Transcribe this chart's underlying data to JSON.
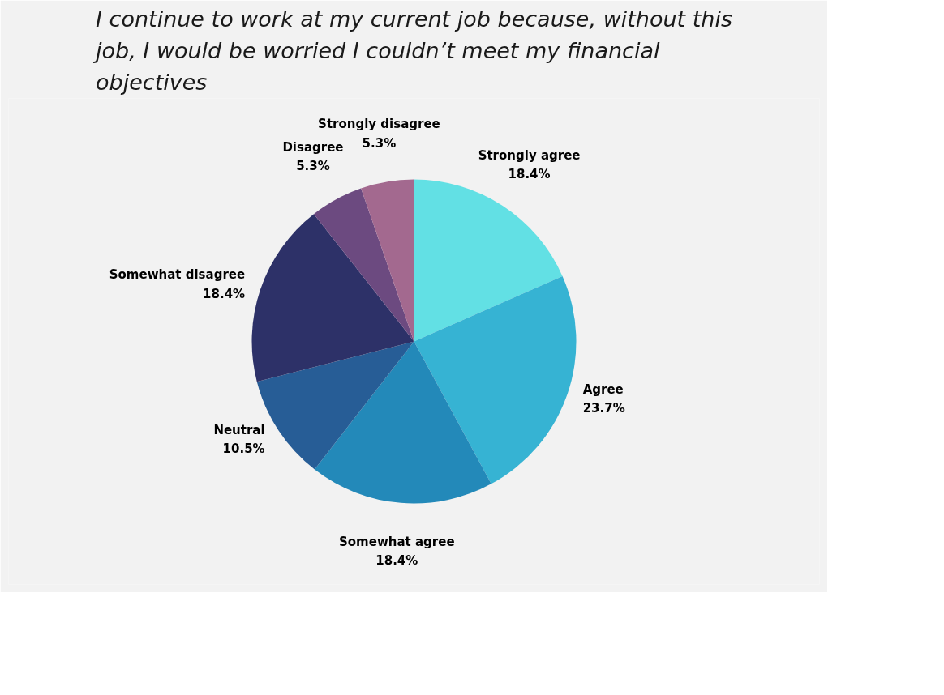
{
  "chart_data": {
    "type": "pie",
    "title": "I continue to work at my current job because, without this job, I would be worried I couldn’t meet my financial objectives",
    "categories": [
      "Strongly agree",
      "Agree",
      "Somewhat agree",
      "Neutral",
      "Somewhat disagree",
      "Disagree",
      "Strongly disagree"
    ],
    "values": [
      18.4,
      23.7,
      18.4,
      10.5,
      18.4,
      5.3,
      5.3
    ],
    "value_labels": [
      "18.4%",
      "23.7%",
      "18.4%",
      "10.5%",
      "18.4%",
      "5.3%",
      "5.3%"
    ],
    "colors": [
      "#62e0e4",
      "#36b3d3",
      "#2389b9",
      "#275d96",
      "#2d3168",
      "#6c4a80",
      "#a3698f"
    ]
  }
}
